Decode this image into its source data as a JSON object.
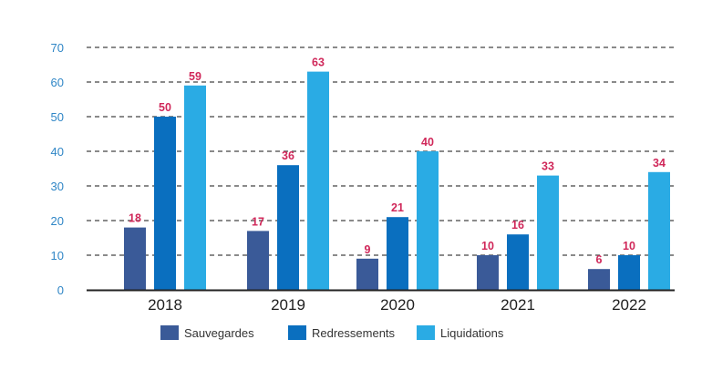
{
  "chart_data": {
    "type": "bar",
    "title": "",
    "xlabel": "",
    "ylabel": "",
    "ylim": [
      0,
      70
    ],
    "yticks": [
      0,
      10,
      20,
      30,
      40,
      50,
      60,
      70
    ],
    "grid": "horizontal-dashed",
    "legend_position": "bottom",
    "categories": [
      "2018",
      "2019",
      "2020",
      "2021",
      "2022"
    ],
    "series": [
      {
        "name": "Sauvegardes",
        "color": "#3a5a98",
        "values": [
          18,
          17,
          9,
          10,
          6
        ]
      },
      {
        "name": "Redressements",
        "color": "#0a6fbf",
        "values": [
          50,
          36,
          21,
          16,
          10
        ]
      },
      {
        "name": "Liquidations",
        "color": "#2aabe4",
        "values": [
          59,
          63,
          40,
          33,
          34
        ]
      }
    ],
    "colors": {
      "axis": "#222222",
      "grid": "#444444",
      "tick_text": "#2f86c6",
      "category_text": "#1f1f1f",
      "data_label": "#d0285a"
    }
  }
}
